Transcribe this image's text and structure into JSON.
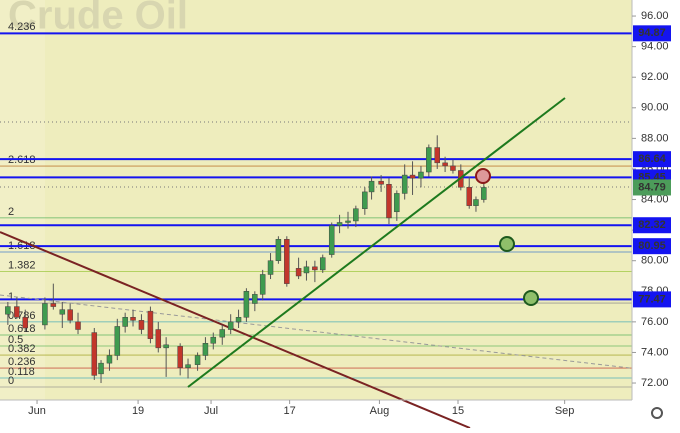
{
  "chart_data": {
    "type": "candlestick",
    "title": "Crude Oil",
    "x": [
      -5.2,
      -3.6,
      -2.1,
      1.4,
      2.9,
      4.5,
      5.9,
      7.3,
      10.2,
      11.4,
      12.9,
      14.3,
      15.7,
      17.1,
      18.6,
      20.2,
      21.6,
      23.0,
      25.5,
      26.9,
      28.6,
      30.0,
      31.4,
      33.0,
      34.5,
      35.9,
      37.3,
      38.8,
      40.2,
      41.6,
      43.0,
      44.5,
      46.6,
      48.0,
      49.5,
      50.9,
      52.5,
      53.9,
      55.4,
      56.8,
      58.4,
      59.6,
      61.3,
      62.7,
      64.1,
      65.5,
      66.9,
      68.4,
      69.8,
      71.3,
      72.7,
      74.1,
      75.5,
      77.0,
      78.2,
      79.6
    ],
    "open": [
      76.5,
      77.0,
      76.3,
      75.8,
      77.2,
      76.5,
      76.8,
      76.0,
      75.3,
      72.6,
      73.3,
      73.8,
      75.7,
      76.3,
      76.1,
      76.7,
      75.5,
      74.3,
      74.4,
      73.0,
      73.2,
      73.8,
      74.6,
      75.0,
      75.5,
      76.0,
      76.3,
      77.2,
      77.8,
      79.1,
      80.0,
      81.4,
      79.5,
      79.2,
      79.6,
      79.4,
      80.4,
      82.3,
      82.5,
      82.6,
      83.4,
      84.5,
      85.2,
      85.0,
      83.2,
      84.4,
      85.6,
      85.4,
      85.8,
      87.4,
      86.4,
      86.2,
      85.9,
      84.8,
      83.6,
      84.0
    ],
    "high": [
      77.3,
      77.6,
      76.8,
      77.6,
      78.5,
      77.3,
      77.2,
      76.6,
      75.6,
      73.5,
      74.2,
      76.2,
      76.6,
      76.8,
      76.5,
      77.0,
      76.0,
      75.0,
      74.6,
      73.6,
      74.0,
      75.0,
      75.3,
      75.8,
      76.5,
      76.8,
      78.2,
      78.0,
      79.4,
      80.5,
      81.6,
      81.6,
      80.2,
      80.0,
      80.0,
      80.4,
      82.5,
      83.0,
      83.2,
      83.6,
      84.8,
      85.5,
      85.6,
      85.4,
      84.6,
      86.3,
      86.5,
      86.2,
      87.6,
      88.2,
      86.8,
      86.6,
      86.3,
      85.5,
      84.2,
      85.2
    ],
    "low": [
      75.8,
      76.2,
      75.4,
      75.5,
      76.8,
      75.6,
      75.9,
      75.2,
      72.2,
      72.0,
      72.8,
      73.5,
      75.3,
      75.7,
      75.2,
      74.6,
      74.0,
      72.4,
      72.5,
      72.3,
      72.8,
      73.5,
      74.2,
      74.5,
      75.2,
      75.6,
      76.0,
      76.7,
      77.4,
      78.8,
      79.8,
      78.3,
      78.8,
      78.7,
      78.6,
      79.2,
      80.2,
      81.8,
      82.1,
      82.2,
      83.0,
      84.0,
      84.5,
      82.4,
      82.6,
      84.0,
      84.3,
      84.8,
      85.5,
      86.0,
      85.8,
      85.7,
      84.6,
      83.4,
      83.2,
      83.8
    ],
    "close": [
      77.0,
      76.3,
      75.6,
      77.2,
      77.0,
      76.8,
      76.1,
      75.5,
      72.5,
      73.3,
      73.8,
      75.7,
      76.3,
      76.1,
      75.5,
      74.9,
      74.3,
      74.5,
      73.0,
      73.2,
      73.8,
      74.6,
      75.0,
      75.5,
      76.0,
      76.3,
      78.0,
      77.8,
      79.1,
      80.0,
      81.4,
      78.5,
      79.0,
      79.6,
      79.4,
      80.2,
      82.3,
      82.5,
      82.6,
      83.4,
      84.5,
      85.2,
      85.0,
      82.8,
      84.4,
      85.6,
      85.4,
      85.8,
      87.4,
      86.4,
      86.2,
      85.9,
      84.8,
      83.6,
      84.0,
      84.79
    ],
    "up_color": "#3f9b4f",
    "down_color": "#c2362b",
    "xlim": [
      -6.6,
      106
    ],
    "xticks": [
      {
        "value": 0,
        "label": "Jun"
      },
      {
        "value": 18,
        "label": "19"
      },
      {
        "value": 31,
        "label": "Jul"
      },
      {
        "value": 45,
        "label": "17"
      },
      {
        "value": 61,
        "label": "Aug"
      },
      {
        "value": 75,
        "label": "15"
      },
      {
        "value": 94,
        "label": "Sep"
      }
    ],
    "ylim": [
      70.89,
      97.05
    ],
    "yticks": [
      {
        "value": 72,
        "label": "72.00"
      },
      {
        "value": 74,
        "label": "74.00"
      },
      {
        "value": 76,
        "label": "76.00"
      },
      {
        "value": 78,
        "label": "78.00"
      },
      {
        "value": 80,
        "label": "80.00"
      },
      {
        "value": 82,
        "label": "82.00"
      },
      {
        "value": 84,
        "label": "84.00"
      },
      {
        "value": 86,
        "label": "86.00"
      },
      {
        "value": 88,
        "label": "88.00"
      },
      {
        "value": 90,
        "label": "90.00"
      },
      {
        "value": 92,
        "label": "92.00"
      },
      {
        "value": 94,
        "label": "94.00"
      },
      {
        "value": 96,
        "label": "96.00"
      }
    ],
    "levels": [
      94.87,
      86.64,
      85.45,
      82.32,
      80.95,
      77.47
    ],
    "level_color": "#1414f0",
    "last_price": 84.79,
    "last_price_color": "#4c9c5a",
    "fib_levels": [
      {
        "label": "4.236",
        "value": 94.87,
        "color": "#c0392b"
      },
      {
        "label": "2.618",
        "value": 86.19,
        "color": "#b5651d"
      },
      {
        "label": "2",
        "value": 82.8,
        "color": "#3aa84a"
      },
      {
        "label": "1.618",
        "value": 80.57,
        "color": "#2266cc"
      },
      {
        "label": "1.382",
        "value": 79.3,
        "color": "#8cbf26"
      },
      {
        "label": "1",
        "value": 77.23,
        "color": "#888888"
      },
      {
        "label": "0.786",
        "value": 76.0,
        "color": "#2aa0b8"
      },
      {
        "label": "0.618",
        "value": 75.14,
        "color": "#3aa84a"
      },
      {
        "label": "0.5",
        "value": 74.42,
        "color": "#4caf50"
      },
      {
        "label": "0.382",
        "value": 73.83,
        "color": "#a0a020"
      },
      {
        "label": "0.236",
        "value": 72.98,
        "color": "#c0392b"
      },
      {
        "label": "0.118",
        "value": 72.33,
        "color": "#2aa0b8"
      },
      {
        "label": "0",
        "value": 71.74,
        "color": "#888888"
      }
    ]
  }
}
